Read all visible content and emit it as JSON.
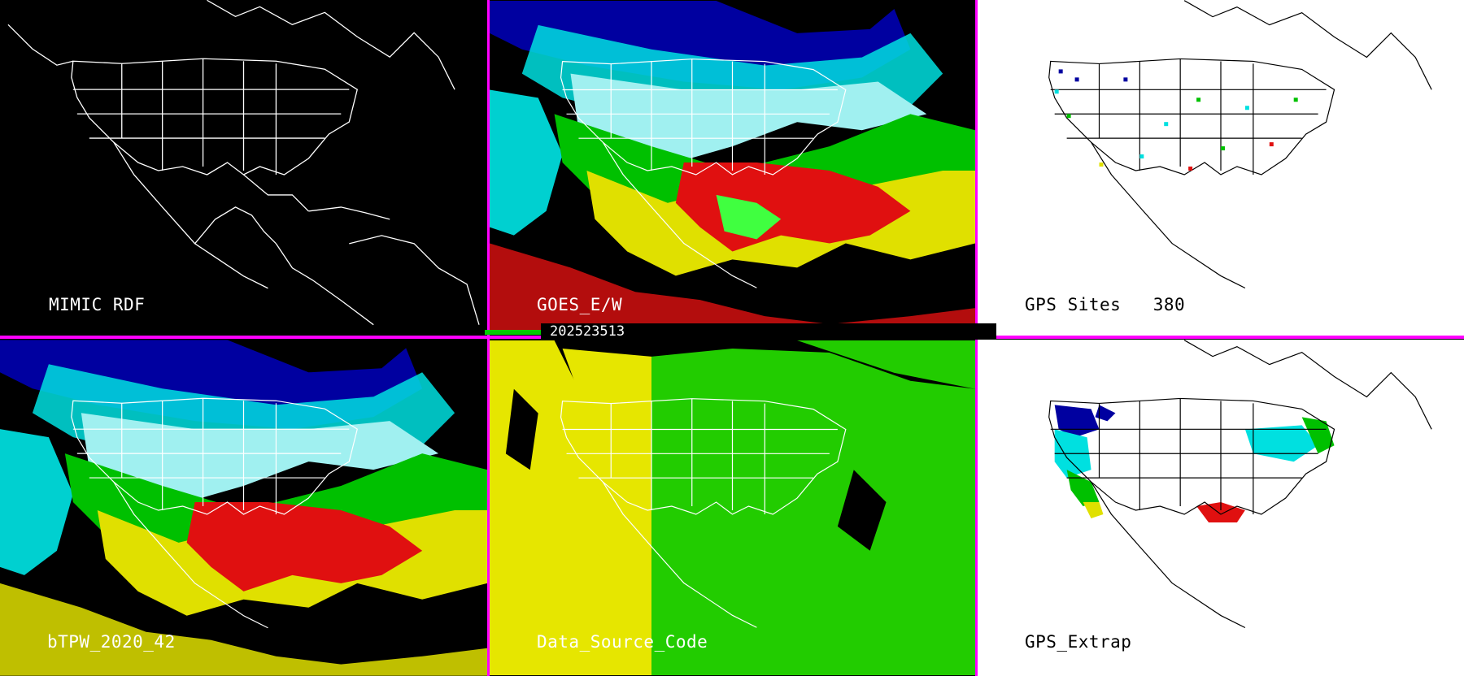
{
  "panels": {
    "top_left": {
      "label": "MIMIC RDF"
    },
    "top_middle": {
      "label": "GOES_E/W"
    },
    "top_right": {
      "label": "GPS Sites",
      "count": "380"
    },
    "bottom_left": {
      "label": "bTPW_2020_42"
    },
    "bottom_middle": {
      "label": "Data_Source_Code"
    },
    "bottom_right": {
      "label": "GPS_Extrap"
    }
  },
  "timestamp": "202523513",
  "colors": {
    "divider": "#ff00ff",
    "background_dark": "#000000",
    "background_light": "#ffffff",
    "tpw_scale": [
      "#c8c8c8",
      "#0000a0",
      "#3050e0",
      "#00e0e0",
      "#40f0f0",
      "#00c000",
      "#40ff40",
      "#e0e000",
      "#ffff00",
      "#e01010"
    ],
    "source_code_scale": [
      "#e6e600",
      "#22cc00"
    ]
  }
}
